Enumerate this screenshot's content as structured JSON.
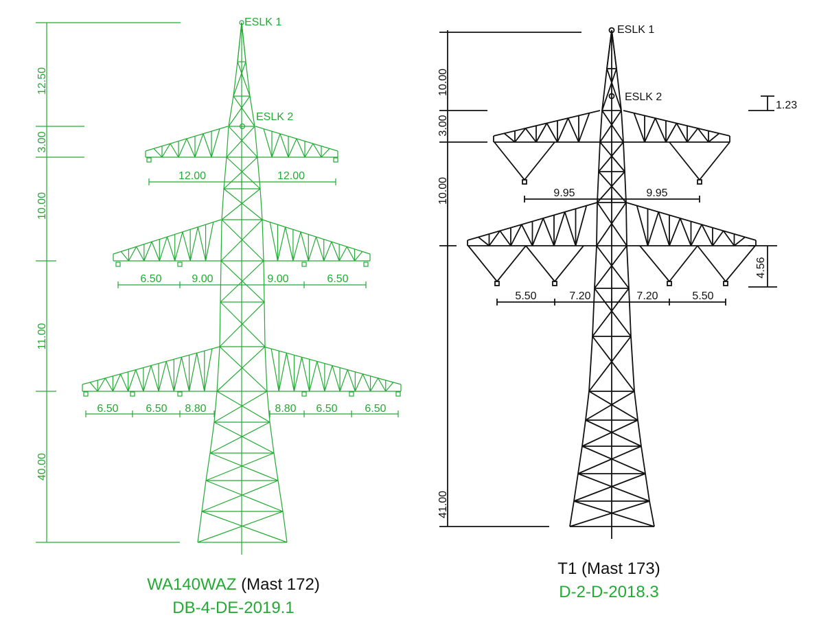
{
  "towers": [
    {
      "name": "WA140WAZ",
      "mast": "(Mast 172)",
      "code": "DB-4-DE-2019.1",
      "eslk1": "ESLK 1",
      "eslk2": "ESLK 2",
      "vertical_dims": [
        "12.50",
        "3.00",
        "10.00",
        "11.00",
        "40.00"
      ],
      "arm_dims": [
        [
          "12.00",
          "12.00"
        ],
        [
          "6.50",
          "9.00",
          "9.00",
          "6.50"
        ],
        [
          "6.50",
          "6.50",
          "8.80",
          "8.80",
          "6.50",
          "6.50"
        ]
      ]
    },
    {
      "name": "T1",
      "mast": "(Mast 173)",
      "code": "D-2-D-2018.3",
      "eslk1": "ESLK 1",
      "eslk2": "ESLK 2",
      "vertical_dims": [
        "10.00",
        "3.00",
        "10.00",
        "41.00"
      ],
      "arm_dims": [
        [
          "9.95",
          "9.95"
        ],
        [
          "5.50",
          "7.20",
          "7.20",
          "5.50"
        ]
      ],
      "side_dims": [
        "1.23",
        "4.56"
      ]
    }
  ]
}
